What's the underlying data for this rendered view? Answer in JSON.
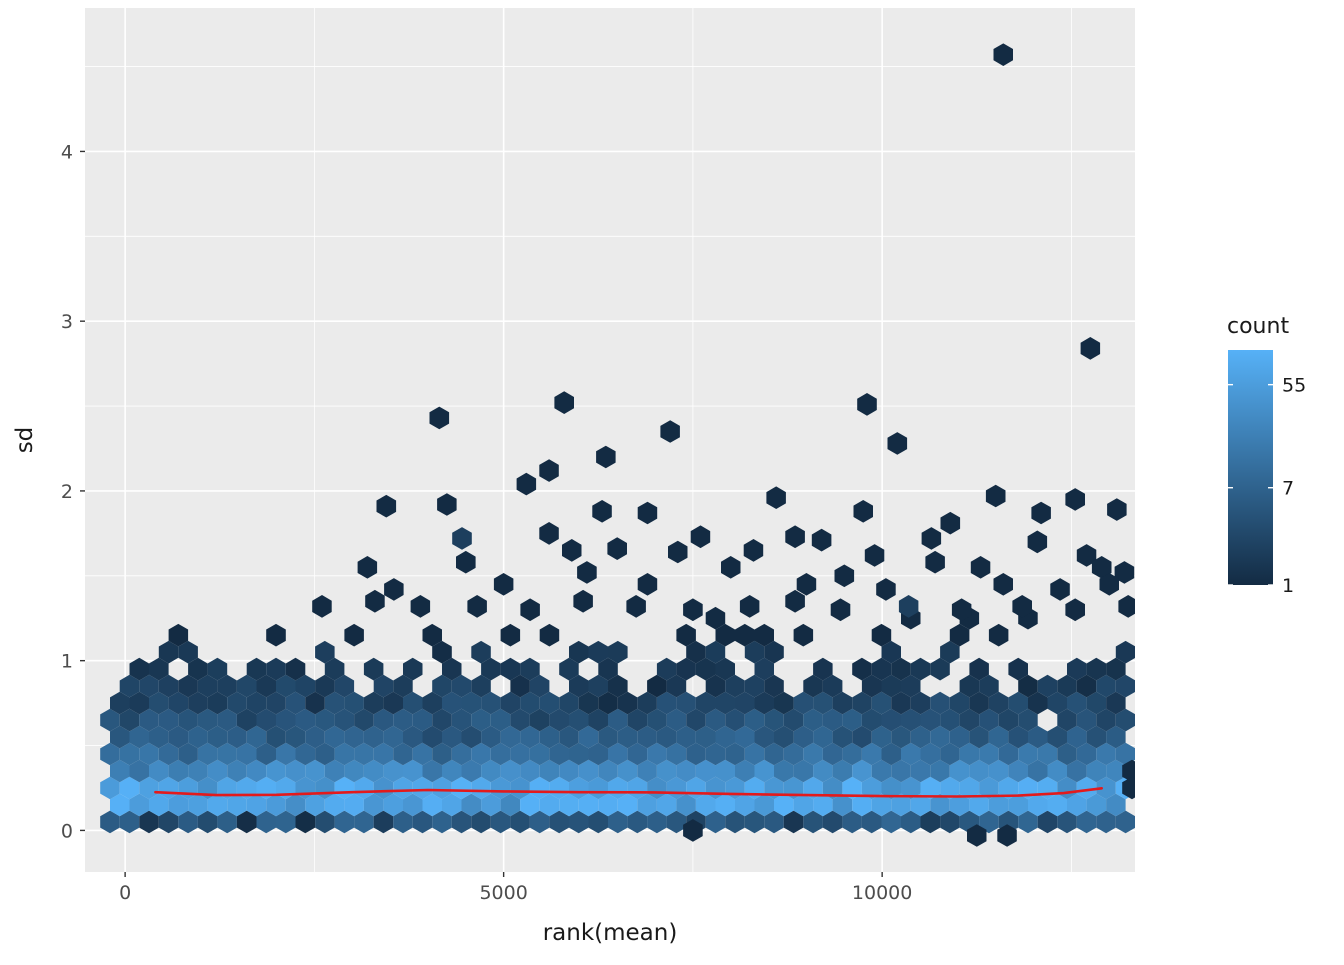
{
  "chart_data": {
    "type": "hexbin",
    "title": "",
    "xlabel": "rank(mean)",
    "ylabel": "sd",
    "xlim": [
      -530,
      13340
    ],
    "ylim": [
      -0.245,
      4.845
    ],
    "x_ticks": [
      0,
      5000,
      10000
    ],
    "x_minor": [
      2500,
      7500,
      12500
    ],
    "y_ticks": [
      0,
      1,
      2,
      3,
      4
    ],
    "y_minor": [
      0.5,
      1.5,
      2.5,
      3.5,
      4.5
    ],
    "grid": true,
    "colors": {
      "panel": "#EBEBEB",
      "grid": "#FFFFFF",
      "low": "#132B43",
      "high": "#56B1F7",
      "smooth": "#E31A1C",
      "tick_text": "#4D4D4D",
      "axis_tick": "#333333"
    },
    "legend": {
      "title": "count",
      "position": "right",
      "scale": "log",
      "scale_max": 110,
      "labels": [
        55,
        7,
        1
      ]
    },
    "hex": {
      "dx": 258,
      "row_dy": 0.1,
      "x0": -200,
      "x1": 13250
    },
    "hex_rows": [
      {
        "y": 0.05,
        "cmin": 1,
        "cmax": 8,
        "gap": 0.0
      },
      {
        "y": 0.15,
        "cmin": 25,
        "cmax": 110,
        "gap": 0.0
      },
      {
        "y": 0.25,
        "cmin": 30,
        "cmax": 110,
        "gap": 0.0
      },
      {
        "y": 0.35,
        "cmin": 12,
        "cmax": 40,
        "gap": 0.0
      },
      {
        "y": 0.45,
        "cmin": 6,
        "cmax": 16,
        "gap": 0.0
      },
      {
        "y": 0.55,
        "cmin": 3,
        "cmax": 9,
        "gap": 0.0
      },
      {
        "y": 0.65,
        "cmin": 2,
        "cmax": 6,
        "gap": 0.03
      },
      {
        "y": 0.75,
        "cmin": 1,
        "cmax": 4,
        "gap": 0.07
      },
      {
        "y": 0.85,
        "cmin": 1,
        "cmax": 3,
        "gap": 0.16
      },
      {
        "y": 0.95,
        "cmin": 1,
        "cmax": 2,
        "gap": 0.38
      },
      {
        "y": 1.05,
        "cmin": 1,
        "cmax": 2,
        "gap": 0.64
      },
      {
        "y": 1.15,
        "cmin": 1,
        "cmax": 1,
        "gap": 0.8
      },
      {
        "y": 1.25,
        "cmin": 1,
        "cmax": 1,
        "gap": 0.9
      }
    ],
    "hex_outliers": [
      [
        11600,
        4.57
      ],
      [
        12750,
        2.84
      ],
      [
        5800,
        2.52
      ],
      [
        9800,
        2.51
      ],
      [
        4150,
        2.43
      ],
      [
        7200,
        2.35
      ],
      [
        10200,
        2.28
      ],
      [
        6350,
        2.2
      ],
      [
        5600,
        2.12
      ],
      [
        5300,
        2.04
      ],
      [
        8600,
        1.96
      ],
      [
        11500,
        1.97
      ],
      [
        12550,
        1.95
      ],
      [
        3450,
        1.91
      ],
      [
        4250,
        1.92
      ],
      [
        6300,
        1.88
      ],
      [
        6900,
        1.87
      ],
      [
        9750,
        1.88
      ],
      [
        12100,
        1.87
      ],
      [
        13100,
        1.89
      ],
      [
        10900,
        1.81
      ],
      [
        4450,
        1.72,
        2
      ],
      [
        5600,
        1.75
      ],
      [
        7600,
        1.73
      ],
      [
        8850,
        1.73
      ],
      [
        9200,
        1.71
      ],
      [
        10650,
        1.72
      ],
      [
        12050,
        1.7
      ],
      [
        5900,
        1.65
      ],
      [
        6500,
        1.66
      ],
      [
        7300,
        1.64
      ],
      [
        8300,
        1.65
      ],
      [
        9900,
        1.62
      ],
      [
        12700,
        1.62
      ],
      [
        3200,
        1.55
      ],
      [
        4500,
        1.58
      ],
      [
        6100,
        1.52
      ],
      [
        8000,
        1.55
      ],
      [
        10700,
        1.58
      ],
      [
        11300,
        1.55
      ],
      [
        12900,
        1.55
      ],
      [
        9500,
        1.5
      ],
      [
        13200,
        1.52
      ],
      [
        3550,
        1.42
      ],
      [
        5000,
        1.45
      ],
      [
        6900,
        1.45
      ],
      [
        9000,
        1.45
      ],
      [
        10050,
        1.42
      ],
      [
        11600,
        1.45
      ],
      [
        12350,
        1.42
      ],
      [
        13000,
        1.45
      ],
      [
        2600,
        1.32
      ],
      [
        3300,
        1.35
      ],
      [
        3900,
        1.32
      ],
      [
        4650,
        1.32
      ],
      [
        5350,
        1.3
      ],
      [
        6050,
        1.35
      ],
      [
        6750,
        1.32
      ],
      [
        7500,
        1.3
      ],
      [
        8250,
        1.32
      ],
      [
        8850,
        1.35
      ],
      [
        9450,
        1.3
      ],
      [
        10350,
        1.32,
        2
      ],
      [
        11050,
        1.3
      ],
      [
        11850,
        1.32
      ],
      [
        12550,
        1.3
      ],
      [
        13250,
        1.32
      ],
      [
        7500,
        0.0
      ],
      [
        11250,
        -0.03
      ],
      [
        11650,
        -0.03
      ],
      [
        13300,
        0.35
      ],
      [
        13300,
        0.25
      ]
    ],
    "smooth": {
      "points": [
        [
          400,
          0.225
        ],
        [
          1200,
          0.208
        ],
        [
          2000,
          0.21
        ],
        [
          3000,
          0.225
        ],
        [
          4000,
          0.238
        ],
        [
          5000,
          0.23
        ],
        [
          6000,
          0.225
        ],
        [
          7000,
          0.224
        ],
        [
          8000,
          0.215
        ],
        [
          9000,
          0.208
        ],
        [
          10000,
          0.202
        ],
        [
          11000,
          0.2
        ],
        [
          11800,
          0.205
        ],
        [
          12400,
          0.22
        ],
        [
          12900,
          0.248
        ]
      ]
    }
  }
}
